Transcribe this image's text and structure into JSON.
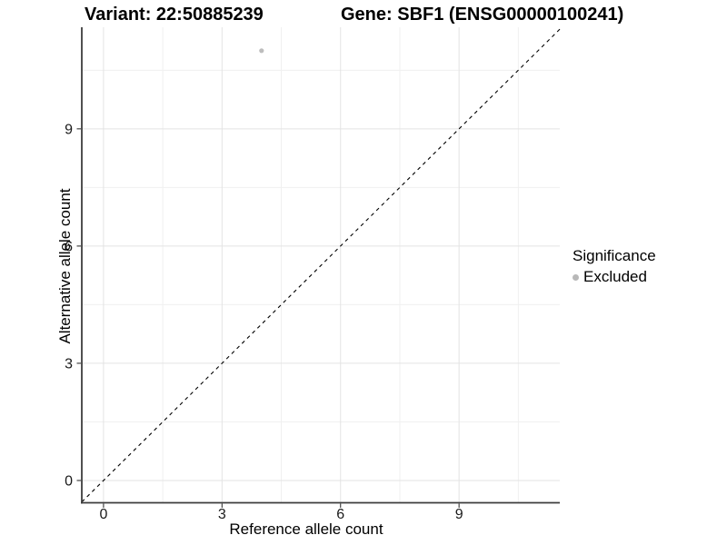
{
  "titles": {
    "variant": "Variant: 22:50885239",
    "gene": "Gene: SBF1 (ENSG00000100241)"
  },
  "chart_data": {
    "type": "scatter",
    "title_left": "Variant: 22:50885239",
    "title_right": "Gene: SBF1 (ENSG00000100241)",
    "xlabel": "Reference allele count",
    "ylabel": "Alternative allele count",
    "x_ticks": [
      0,
      3,
      6,
      9
    ],
    "y_ticks": [
      0,
      3,
      6,
      9
    ],
    "x_minor_breaks": [
      1.5,
      4.5,
      7.5,
      10.5
    ],
    "y_minor_breaks": [
      1.5,
      4.5,
      7.5,
      10.5
    ],
    "xlim": [
      -0.55,
      11.55
    ],
    "ylim": [
      -0.57,
      11.6
    ],
    "grid": true,
    "points": [
      {
        "x": 4,
        "y": 11,
        "series": "Excluded"
      }
    ],
    "series": [
      {
        "name": "Excluded",
        "color": "#bdbdbd"
      }
    ],
    "reference_line": {
      "kind": "identity",
      "style": "dashed",
      "color": "#000000"
    },
    "legend": {
      "title": "Significance",
      "position": "right",
      "items": [
        {
          "label": "Excluded",
          "color": "#b8b8b8"
        }
      ]
    },
    "style": {
      "background": "#ffffff",
      "grid_major_color": "#e3e3e3",
      "grid_minor_color": "#f0f0f0",
      "axis_line_color": "#3c3c3c",
      "tick_color": "#333333",
      "tick_label_color": "#1a1a1a",
      "tick_label_size": 16
    }
  }
}
